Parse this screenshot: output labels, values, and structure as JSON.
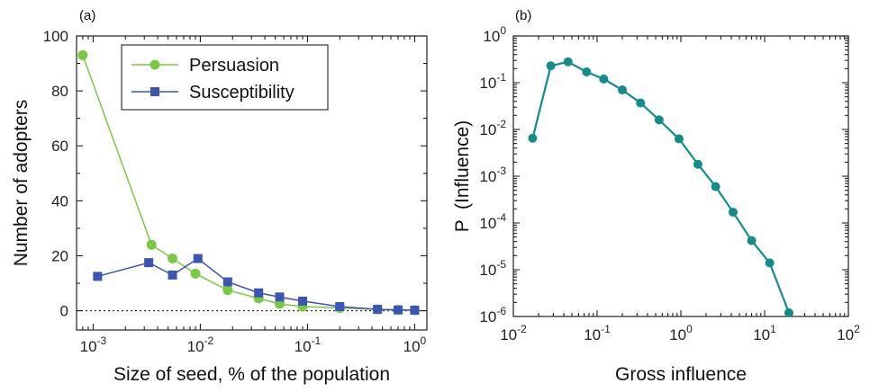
{
  "chart_data": [
    {
      "panel": "(a)",
      "type": "line",
      "xlabel": "Size of seed, % of the population",
      "ylabel": "Number of adopters",
      "x_scale": "log",
      "xlim": [
        0.0007,
        1.3
      ],
      "ylim": [
        -7,
        100
      ],
      "x_ticks": [
        {
          "value": 0.001,
          "base": "10",
          "exp": "-3"
        },
        {
          "value": 0.01,
          "base": "10",
          "exp": "-2"
        },
        {
          "value": 0.1,
          "base": "10",
          "exp": "-1"
        },
        {
          "value": 1,
          "base": "10",
          "exp": "0"
        }
      ],
      "y_ticks": [
        {
          "value": 0,
          "label": "0"
        },
        {
          "value": 20,
          "label": "20"
        },
        {
          "value": 40,
          "label": "40"
        },
        {
          "value": 60,
          "label": "60"
        },
        {
          "value": 80,
          "label": "80"
        },
        {
          "value": 100,
          "label": "100"
        }
      ],
      "reference_line": {
        "y": 0,
        "style": "dotted"
      },
      "legend": "top-right",
      "series": [
        {
          "name": "Persuasion",
          "color": "#7ac943",
          "marker": "circle",
          "x": [
            0.0008,
            0.0035,
            0.0055,
            0.009,
            0.018,
            0.035,
            0.055,
            0.09,
            0.2,
            0.45,
            0.7,
            1.0
          ],
          "y": [
            93,
            24,
            19,
            13.5,
            7.5,
            4.5,
            2.5,
            1.5,
            1.0,
            0.5,
            0.3,
            0.2
          ]
        },
        {
          "name": "Susceptibility",
          "color": "#3a55b4",
          "marker": "square",
          "x": [
            0.0011,
            0.0033,
            0.0055,
            0.0095,
            0.018,
            0.035,
            0.055,
            0.09,
            0.2,
            0.45,
            0.7,
            1.0
          ],
          "y": [
            12.5,
            17.5,
            13,
            19,
            10.5,
            6.5,
            5,
            3.5,
            1.5,
            0.5,
            0.3,
            0.2
          ]
        }
      ]
    },
    {
      "panel": "(b)",
      "type": "line",
      "xlabel": "Gross influence",
      "ylabel": "P  (Influence)",
      "x_scale": "log",
      "y_scale": "log",
      "xlim": [
        0.01,
        100
      ],
      "ylim": [
        1e-06,
        1
      ],
      "x_ticks": [
        {
          "value": 0.01,
          "base": "10",
          "exp": "-2"
        },
        {
          "value": 0.1,
          "base": "10",
          "exp": "-1"
        },
        {
          "value": 1,
          "base": "10",
          "exp": "0"
        },
        {
          "value": 10,
          "base": "10",
          "exp": "1"
        },
        {
          "value": 100,
          "base": "10",
          "exp": "2"
        }
      ],
      "y_ticks": [
        {
          "value": 1e-06,
          "base": "10",
          "exp": "-6"
        },
        {
          "value": 1e-05,
          "base": "10",
          "exp": "-5"
        },
        {
          "value": 0.0001,
          "base": "10",
          "exp": "-4"
        },
        {
          "value": 0.001,
          "base": "10",
          "exp": "-3"
        },
        {
          "value": 0.01,
          "base": "10",
          "exp": "-2"
        },
        {
          "value": 0.1,
          "base": "10",
          "exp": "-1"
        },
        {
          "value": 1,
          "base": "10",
          "exp": "0"
        }
      ],
      "series": [
        {
          "color": "#138c8c",
          "marker": "circle",
          "x": [
            0.017,
            0.028,
            0.045,
            0.075,
            0.12,
            0.2,
            0.33,
            0.55,
            0.95,
            1.6,
            2.6,
            4.2,
            7.0,
            11.5,
            19.5
          ],
          "y": [
            0.0065,
            0.23,
            0.28,
            0.17,
            0.12,
            0.07,
            0.037,
            0.016,
            0.0063,
            0.0018,
            0.0006,
            0.00017,
            4.2e-05,
            1.4e-05,
            1.2e-06
          ]
        }
      ]
    }
  ]
}
